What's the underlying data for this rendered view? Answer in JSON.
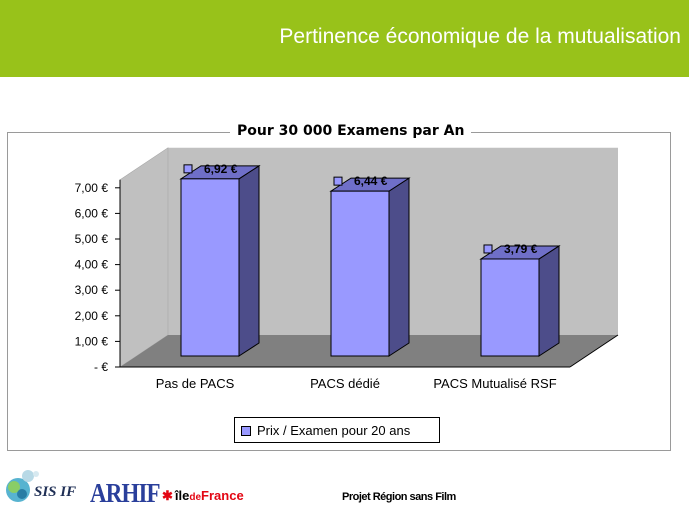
{
  "slide": {
    "title": "Pertinence économique de la mutualisation",
    "footer": "Projet Région sans Film",
    "colors": {
      "header": "#98c21a",
      "bar_front": "#9999ff",
      "bar_side": "#4d4d8a",
      "wall": "#c0c0c0",
      "floor": "#808080"
    }
  },
  "logos": {
    "sisif": "SIS IF",
    "arhif": "ARHIF",
    "idf_ile": "île",
    "idf_de": "de",
    "idf_france": "France"
  },
  "chart_data": {
    "type": "bar",
    "title": "Pour 30 000 Examens par An",
    "categories": [
      "Pas de PACS",
      "PACS dédié",
      "PACS Mutualisé RSF"
    ],
    "series": [
      {
        "name": "Prix / Examen pour 20 ans",
        "values": [
          6.92,
          6.44,
          3.79
        ],
        "labels": [
          "6,92 €",
          "6,44 €",
          "3,79 €"
        ]
      }
    ],
    "y_ticks": [
      0,
      1,
      2,
      3,
      4,
      5,
      6,
      7
    ],
    "y_tick_labels": [
      "-   €",
      "1,00 €",
      "2,00 €",
      "3,00 €",
      "4,00 €",
      "5,00 €",
      "6,00 €",
      "7,00 €"
    ],
    "ylim": [
      0,
      7
    ],
    "grid": false,
    "legend_position": "bottom",
    "style": "3d-column"
  }
}
